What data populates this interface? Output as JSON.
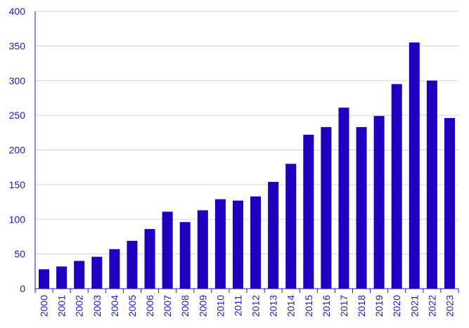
{
  "chart_data": {
    "type": "bar",
    "title": "",
    "xlabel": "",
    "ylabel": "",
    "categories": [
      "2000",
      "2001",
      "2002",
      "2003",
      "2004",
      "2005",
      "2006",
      "2007",
      "2008",
      "2009",
      "2010",
      "2011",
      "2012",
      "2013",
      "2014",
      "2015",
      "2016",
      "2017",
      "2018",
      "2019",
      "2020",
      "2021",
      "2022",
      "2023"
    ],
    "values": [
      28,
      32,
      40,
      46,
      57,
      69,
      86,
      111,
      96,
      113,
      129,
      127,
      133,
      154,
      180,
      222,
      233,
      261,
      233,
      249,
      295,
      355,
      300,
      246
    ],
    "ylim": [
      0,
      400
    ],
    "yticks": [
      0,
      50,
      100,
      150,
      200,
      250,
      300,
      350,
      400
    ],
    "grid": true,
    "colors": {
      "bar": "#1e00c0",
      "text": "#1a1ab8",
      "grid": "#d3d3e6",
      "axis": "#1a1ab8"
    }
  }
}
